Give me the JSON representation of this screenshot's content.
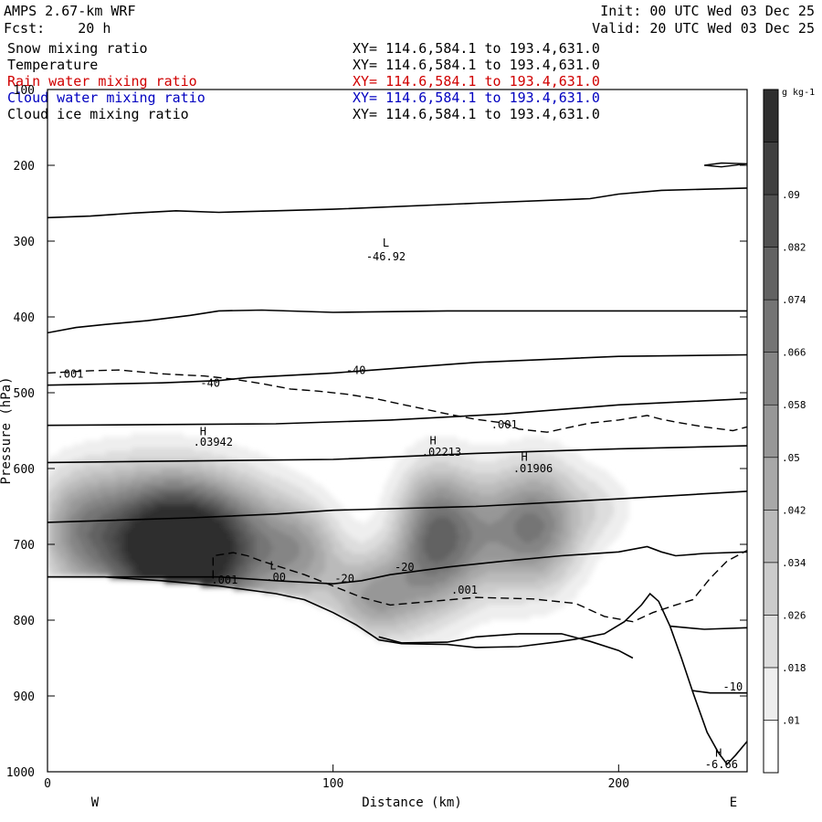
{
  "header": {
    "model": "AMPS 2.67-km WRF",
    "forecast": "Fcst:    20 h",
    "init": "Init: 00 UTC Wed 03 Dec 25",
    "valid": "Valid: 20 UTC Wed 03 Dec 25"
  },
  "fields": [
    {
      "name": "Snow mixing ratio",
      "xy": "XY= 114.6,584.1 to 193.4,631.0",
      "color": "#000000"
    },
    {
      "name": "Temperature",
      "xy": "XY= 114.6,584.1 to 193.4,631.0",
      "color": "#000000"
    },
    {
      "name": "Rain water mixing ratio",
      "xy": "XY= 114.6,584.1 to 193.4,631.0",
      "color": "#d00000"
    },
    {
      "name": "Cloud water mixing ratio",
      "xy": "XY= 114.6,584.1 to 193.4,631.0",
      "color": "#0000c0"
    },
    {
      "name": "Cloud ice mixing ratio",
      "xy": "XY= 114.6,584.1 to 193.4,631.0",
      "color": "#000000"
    }
  ],
  "chart_data": {
    "type": "heatmap",
    "xlabel": "Distance (km)",
    "ylabel": "Pressure (hPa)",
    "xlim": [
      0,
      245
    ],
    "ylim": [
      100,
      1000
    ],
    "y_scale": "linear-inverted",
    "x_ticks": [
      0,
      100,
      200
    ],
    "y_ticks": [
      100,
      200,
      300,
      400,
      500,
      600,
      700,
      800,
      900,
      1000
    ],
    "x_end_labels": {
      "left": "W",
      "right": "E"
    },
    "colorbar": {
      "unit": "g kg-1",
      "tick_labels": [
        ".09",
        ".082",
        ".074",
        ".066",
        ".058",
        ".05",
        ".042",
        ".034",
        ".026",
        ".018",
        ".01"
      ],
      "levels": [
        0.01,
        0.018,
        0.026,
        0.034,
        0.042,
        0.05,
        0.058,
        0.066,
        0.074,
        0.082,
        0.09,
        0.098
      ]
    },
    "snow_blobs": [
      {
        "x": 47,
        "p": 712,
        "rx": 20,
        "rp": 90,
        "peak": 0.1
      },
      {
        "x": 30,
        "p": 690,
        "rx": 22,
        "rp": 95,
        "peak": 0.05
      },
      {
        "x": 10,
        "p": 680,
        "rx": 16,
        "rp": 80,
        "peak": 0.04
      },
      {
        "x": 68,
        "p": 700,
        "rx": 22,
        "rp": 90,
        "peak": 0.05
      },
      {
        "x": 90,
        "p": 710,
        "rx": 14,
        "rp": 65,
        "peak": 0.035
      },
      {
        "x": 135,
        "p": 690,
        "rx": 14,
        "rp": 95,
        "peak": 0.06
      },
      {
        "x": 115,
        "p": 770,
        "rx": 16,
        "rp": 60,
        "peak": 0.05
      },
      {
        "x": 150,
        "p": 690,
        "rx": 18,
        "rp": 85,
        "peak": 0.035
      },
      {
        "x": 172,
        "p": 675,
        "rx": 16,
        "rp": 85,
        "peak": 0.06
      },
      {
        "x": 195,
        "p": 650,
        "rx": 12,
        "rp": 50,
        "peak": 0.015
      }
    ],
    "terrain": [
      [
        0,
        743
      ],
      [
        20,
        743
      ],
      [
        40,
        748
      ],
      [
        60,
        755
      ],
      [
        80,
        765
      ],
      [
        90,
        773
      ],
      [
        100,
        790
      ],
      [
        108,
        806
      ],
      [
        116,
        826
      ],
      [
        124,
        831
      ],
      [
        140,
        832
      ],
      [
        150,
        836
      ],
      [
        165,
        835
      ],
      [
        178,
        829
      ],
      [
        185,
        825
      ],
      [
        195,
        818
      ],
      [
        202,
        802
      ],
      [
        208,
        780
      ],
      [
        211,
        765
      ],
      [
        214,
        775
      ],
      [
        218,
        808
      ],
      [
        222,
        850
      ],
      [
        226,
        895
      ],
      [
        231,
        948
      ],
      [
        235,
        975
      ],
      [
        238,
        990
      ],
      [
        241,
        978
      ],
      [
        245,
        960
      ]
    ],
    "isotherms": [
      {
        "points": [
          [
            0,
            269
          ],
          [
            15,
            267
          ],
          [
            30,
            263
          ],
          [
            45,
            260
          ],
          [
            60,
            262
          ],
          [
            80,
            260
          ],
          [
            100,
            258
          ],
          [
            150,
            250
          ],
          [
            190,
            244
          ],
          [
            200,
            238
          ],
          [
            215,
            233
          ],
          [
            245,
            230
          ]
        ]
      },
      {
        "points": [
          [
            0,
            421
          ],
          [
            10,
            414
          ],
          [
            20,
            410
          ],
          [
            35,
            405
          ],
          [
            50,
            398
          ],
          [
            60,
            392
          ],
          [
            75,
            391
          ],
          [
            100,
            394
          ],
          [
            140,
            392
          ],
          [
            245,
            392
          ]
        ]
      },
      {
        "points": [
          [
            0,
            490
          ],
          [
            40,
            487
          ],
          [
            60,
            484
          ],
          [
            70,
            480
          ],
          [
            100,
            474
          ],
          [
            150,
            460
          ],
          [
            200,
            452
          ],
          [
            245,
            450
          ]
        ]
      },
      {
        "points": [
          [
            0,
            543
          ],
          [
            80,
            541
          ],
          [
            120,
            536
          ],
          [
            160,
            528
          ],
          [
            200,
            516
          ],
          [
            245,
            508
          ]
        ]
      },
      {
        "points": [
          [
            0,
            592
          ],
          [
            50,
            590
          ],
          [
            100,
            588
          ],
          [
            150,
            580
          ],
          [
            200,
            574
          ],
          [
            245,
            570
          ]
        ]
      },
      {
        "points": [
          [
            0,
            671
          ],
          [
            50,
            665
          ],
          [
            80,
            660
          ],
          [
            100,
            655
          ],
          [
            150,
            650
          ],
          [
            200,
            640
          ],
          [
            245,
            630
          ]
        ]
      },
      {
        "points": [
          [
            0,
            743
          ],
          [
            30,
            743
          ],
          [
            60,
            743
          ],
          [
            80,
            748
          ],
          [
            100,
            752
          ],
          [
            110,
            748
          ],
          [
            120,
            740
          ],
          [
            140,
            730
          ],
          [
            160,
            722
          ],
          [
            180,
            715
          ],
          [
            200,
            710
          ],
          [
            210,
            703
          ],
          [
            215,
            710
          ],
          [
            220,
            715
          ],
          [
            230,
            712
          ],
          [
            245,
            710
          ]
        ]
      },
      {
        "points": [
          [
            116,
            822
          ],
          [
            124,
            830
          ],
          [
            140,
            829
          ],
          [
            150,
            822
          ],
          [
            165,
            818
          ],
          [
            180,
            818
          ],
          [
            190,
            828
          ],
          [
            200,
            840
          ],
          [
            205,
            850
          ]
        ]
      },
      {
        "points": [
          [
            218,
            808
          ],
          [
            230,
            812
          ],
          [
            245,
            810
          ]
        ]
      },
      {
        "points": [
          [
            226,
            893
          ],
          [
            232,
            896
          ],
          [
            245,
            896
          ]
        ]
      }
    ],
    "rain_contour": [
      [
        0,
        474
      ],
      [
        15,
        471
      ],
      [
        25,
        470
      ],
      [
        40,
        475
      ],
      [
        55,
        478
      ],
      [
        65,
        482
      ],
      [
        75,
        488
      ],
      [
        85,
        495
      ],
      [
        95,
        498
      ],
      [
        105,
        502
      ],
      [
        115,
        508
      ],
      [
        125,
        516
      ],
      [
        140,
        528
      ],
      [
        150,
        535
      ],
      [
        160,
        540
      ],
      [
        165,
        548
      ],
      [
        175,
        552
      ],
      [
        180,
        548
      ],
      [
        190,
        540
      ],
      [
        200,
        536
      ],
      [
        210,
        530
      ],
      [
        215,
        535
      ],
      [
        222,
        540
      ],
      [
        230,
        545
      ],
      [
        240,
        550
      ],
      [
        245,
        545
      ]
    ],
    "cloudwater_contour": [
      [
        58,
        745
      ],
      [
        58,
        715
      ],
      [
        65,
        711
      ],
      [
        70,
        715
      ],
      [
        75,
        722
      ],
      [
        80,
        728
      ],
      [
        90,
        740
      ],
      [
        100,
        755
      ],
      [
        110,
        770
      ],
      [
        120,
        780
      ],
      [
        135,
        775
      ],
      [
        150,
        770
      ],
      [
        170,
        772
      ],
      [
        185,
        778
      ],
      [
        195,
        795
      ],
      [
        205,
        802
      ],
      [
        212,
        790
      ],
      [
        220,
        780
      ],
      [
        226,
        773
      ],
      [
        232,
        745
      ],
      [
        238,
        722
      ],
      [
        245,
        708
      ]
    ],
    "ice_contour": [
      [
        230,
        200
      ],
      [
        236,
        197
      ],
      [
        245,
        198
      ],
      [
        236,
        202
      ],
      [
        230,
        200
      ]
    ],
    "labels": [
      {
        "x": 118.5,
        "p": 307,
        "text": "L"
      },
      {
        "x": 118.5,
        "p": 325,
        "text": "-46.92"
      },
      {
        "x": 8,
        "p": 480,
        "text": ".001"
      },
      {
        "x": 57,
        "p": 492,
        "text": "-40"
      },
      {
        "x": 108,
        "p": 475,
        "text": "-40"
      },
      {
        "x": 160,
        "p": 547,
        "text": ".001"
      },
      {
        "x": 54.5,
        "p": 556,
        "text": "H"
      },
      {
        "x": 58,
        "p": 570,
        "text": ".03942"
      },
      {
        "x": 135,
        "p": 568,
        "text": "H"
      },
      {
        "x": 138,
        "p": 583,
        "text": ".02213"
      },
      {
        "x": 167,
        "p": 590,
        "text": "H"
      },
      {
        "x": 170,
        "p": 605,
        "text": ".01906"
      },
      {
        "x": 79,
        "p": 733,
        "text": "L"
      },
      {
        "x": 80,
        "p": 748,
        "text": ".00"
      },
      {
        "x": 62,
        "p": 752,
        "text": ".001"
      },
      {
        "x": 104,
        "p": 750,
        "text": "-20"
      },
      {
        "x": 125,
        "p": 735,
        "text": "-20"
      },
      {
        "x": 146,
        "p": 765,
        "text": ".001"
      },
      {
        "x": 240,
        "p": 893,
        "text": "-10"
      },
      {
        "x": 235,
        "p": 980,
        "text": "H"
      },
      {
        "x": 236,
        "p": 995,
        "text": "-6.66"
      }
    ]
  }
}
